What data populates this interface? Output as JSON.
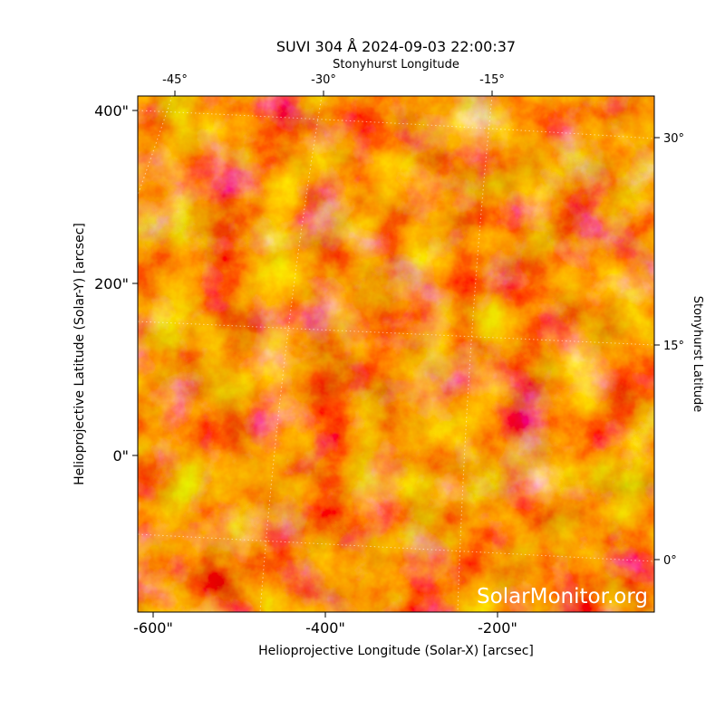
{
  "title": "SUVI 304 Å 2024-09-03 22:00:37",
  "top_axis_label": "Stonyhurst Longitude",
  "right_axis_label": "Stonyhurst Latitude",
  "x_axis_label": "Helioprojective Longitude (Solar-X) [arcsec]",
  "y_axis_label": "Helioprojective Latitude (Solar-Y) [arcsec]",
  "x_tick_labels": [
    "-600\"",
    "-400\"",
    "-200\""
  ],
  "y_tick_labels": [
    "400\"",
    "200\"",
    "0\""
  ],
  "top_tick_labels": [
    "-45°",
    "-30°",
    "-15°"
  ],
  "right_tick_labels": [
    "30°",
    "15°",
    "0°"
  ],
  "watermark": "SolarMonitor.org"
}
